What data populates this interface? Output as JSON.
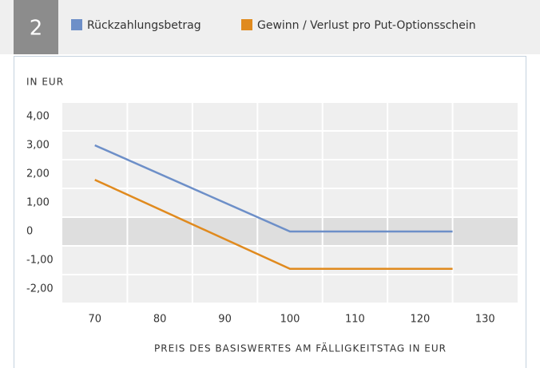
{
  "chart_data": {
    "type": "line",
    "panel_number": "2",
    "y_axis_label": "IN EUR",
    "x_axis_label": "PREIS DES BASISWERTES AM FÄLLIGKEITSTAG IN EUR",
    "x": [
      70,
      100,
      125
    ],
    "series": [
      {
        "name": "Rückzahlungsbetrag",
        "color": "#6d8fc8",
        "values": [
          3.0,
          0,
          0
        ]
      },
      {
        "name": "Gewinn / Verlust pro Put-Optionsschein",
        "color": "#e08a1e",
        "values": [
          1.8,
          -1.3,
          -1.3
        ]
      }
    ],
    "xlim": [
      65,
      135
    ],
    "xticks": [
      70,
      80,
      90,
      100,
      110,
      120,
      130
    ],
    "ylim": [
      -2.5,
      4.5
    ],
    "yticks": [
      {
        "value": 4,
        "label": "4,00"
      },
      {
        "value": 3,
        "label": "3,00"
      },
      {
        "value": 2,
        "label": "2,00"
      },
      {
        "value": 1,
        "label": "1,00"
      },
      0,
      {
        "value": -1,
        "label": "-1,00"
      },
      {
        "value": -2,
        "label": "-2,00"
      }
    ],
    "grid": true
  }
}
